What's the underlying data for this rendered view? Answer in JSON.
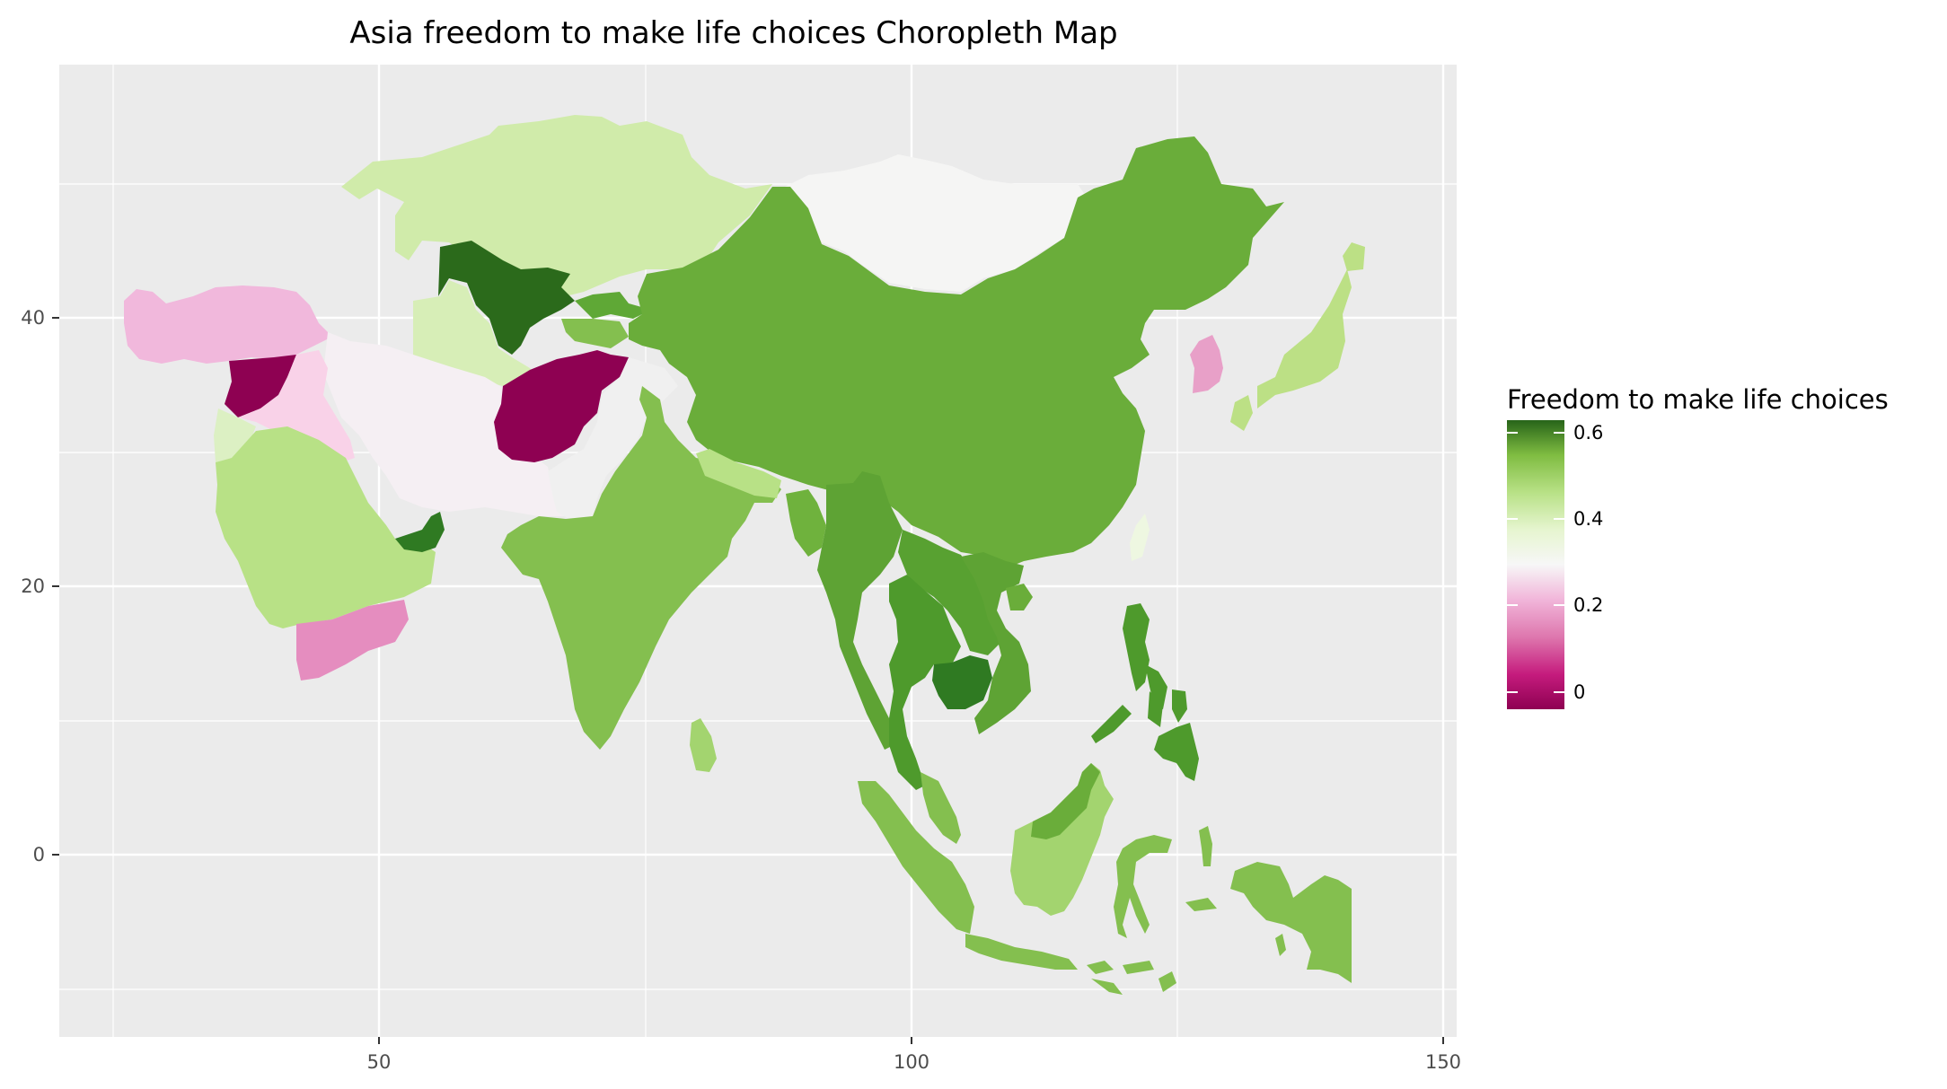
{
  "title": "Asia freedom to make life choices Choropleth Map",
  "axes": {
    "x_ticks": [
      "50",
      "100",
      "150"
    ],
    "y_ticks": [
      "40",
      "20",
      "0"
    ]
  },
  "legend": {
    "title": "Freedom to make life choices",
    "ticks": [
      "0.6",
      "0.4",
      "0.2",
      "0"
    ]
  },
  "colors": {
    "panel_background": "#ebebeb",
    "grid": "#ffffff",
    "scale": [
      "#8e0152",
      "#de77ae",
      "#f7f7f7",
      "#b8e186",
      "#276419"
    ]
  },
  "chart_data": {
    "type": "choropleth",
    "title": "Asia freedom to make life choices Choropleth Map",
    "legend_title": "Freedom to make life choices",
    "color_scale": "PiYG diverging (magenta = low, green = high)",
    "legend_range": [
      0,
      0.6
    ],
    "xlim": [
      25,
      152
    ],
    "ylim": [
      -13,
      57
    ],
    "grid": true,
    "legend_position": "right",
    "regions": [
      {
        "name": "Kazakhstan",
        "value": 0.4
      },
      {
        "name": "Uzbekistan",
        "value": 0.62
      },
      {
        "name": "Turkmenistan",
        "value": 0.38
      },
      {
        "name": "Kyrgyzstan",
        "value": 0.55
      },
      {
        "name": "Tajikistan",
        "value": 0.48
      },
      {
        "name": "Afghanistan",
        "value": 0.0
      },
      {
        "name": "Iran",
        "value": 0.3
      },
      {
        "name": "Turkey",
        "value": 0.18
      },
      {
        "name": "Syria",
        "value": 0.02
      },
      {
        "name": "Iraq",
        "value": 0.22
      },
      {
        "name": "Saudi Arabia",
        "value": 0.44
      },
      {
        "name": "Yemen",
        "value": 0.12
      },
      {
        "name": "United Arab Emirates",
        "value": 0.6
      },
      {
        "name": "Pakistan",
        "value": 0.33
      },
      {
        "name": "India",
        "value": 0.5
      },
      {
        "name": "Sri Lanka",
        "value": 0.46
      },
      {
        "name": "Nepal",
        "value": 0.44
      },
      {
        "name": "Bangladesh",
        "value": 0.5
      },
      {
        "name": "Myanmar",
        "value": 0.52
      },
      {
        "name": "China",
        "value": 0.53
      },
      {
        "name": "Mongolia",
        "value": 0.36
      },
      {
        "name": "South Korea",
        "value": 0.15
      },
      {
        "name": "Japan",
        "value": 0.44
      },
      {
        "name": "Taiwan",
        "value": 0.38
      },
      {
        "name": "Thailand",
        "value": 0.56
      },
      {
        "name": "Laos",
        "value": 0.54
      },
      {
        "name": "Cambodia",
        "value": 0.6
      },
      {
        "name": "Vietnam",
        "value": 0.54
      },
      {
        "name": "Malaysia",
        "value": 0.48
      },
      {
        "name": "Indonesia",
        "value": 0.5
      },
      {
        "name": "Philippines",
        "value": 0.57
      }
    ]
  }
}
